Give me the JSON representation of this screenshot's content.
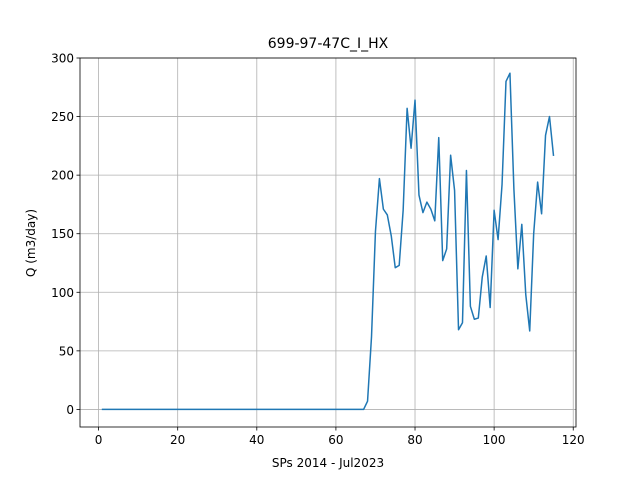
{
  "chart_data": {
    "type": "line",
    "title": "699-97-47C_I_HX",
    "xlabel": "SPs 2014 - Jul2023",
    "ylabel": "Q (m3/day)",
    "xlim": [
      -4.7,
      120.7
    ],
    "ylim": [
      -15,
      300
    ],
    "xticks": [
      0,
      20,
      40,
      60,
      80,
      100,
      120
    ],
    "yticks": [
      0,
      50,
      100,
      150,
      200,
      250,
      300
    ],
    "grid": true,
    "line_color": "#1f77b4",
    "series": [
      {
        "x": [
          1,
          2,
          3,
          4,
          5,
          6,
          7,
          8,
          9,
          10,
          11,
          12,
          13,
          14,
          15,
          16,
          17,
          18,
          19,
          20,
          21,
          22,
          23,
          24,
          25,
          26,
          27,
          28,
          29,
          30,
          31,
          32,
          33,
          34,
          35,
          36,
          37,
          38,
          39,
          40,
          41,
          42,
          43,
          44,
          45,
          46,
          47,
          48,
          49,
          50,
          51,
          52,
          53,
          54,
          55,
          56,
          57,
          58,
          59,
          60,
          61,
          62,
          63,
          64,
          65,
          66,
          67,
          68,
          69,
          70,
          71,
          72,
          73,
          74,
          75,
          76,
          77,
          78,
          79,
          80,
          81,
          82,
          83,
          84,
          85,
          86,
          87,
          88,
          89,
          90,
          91,
          92,
          93,
          94,
          95,
          96,
          97,
          98,
          99,
          100,
          101,
          102,
          103,
          104,
          105,
          106,
          107,
          108,
          109,
          110,
          111,
          112,
          113,
          114,
          115
        ],
        "y": [
          0,
          0,
          0,
          0,
          0,
          0,
          0,
          0,
          0,
          0,
          0,
          0,
          0,
          0,
          0,
          0,
          0,
          0,
          0,
          0,
          0,
          0,
          0,
          0,
          0,
          0,
          0,
          0,
          0,
          0,
          0,
          0,
          0,
          0,
          0,
          0,
          0,
          0,
          0,
          0,
          0,
          0,
          0,
          0,
          0,
          0,
          0,
          0,
          0,
          0,
          0,
          0,
          0,
          0,
          0,
          0,
          0,
          0,
          0,
          0,
          0,
          0,
          0,
          0,
          0,
          0,
          0,
          7,
          62,
          152,
          197,
          171,
          166,
          148,
          121,
          123,
          170,
          257,
          223,
          264,
          183,
          168,
          177,
          171,
          161,
          232,
          127,
          137,
          217,
          187,
          68,
          74,
          204,
          88,
          77,
          78,
          113,
          131,
          87,
          170,
          145,
          192,
          280,
          287,
          188,
          120,
          158,
          98,
          67,
          150,
          194,
          167,
          234,
          250,
          217
        ]
      }
    ]
  }
}
